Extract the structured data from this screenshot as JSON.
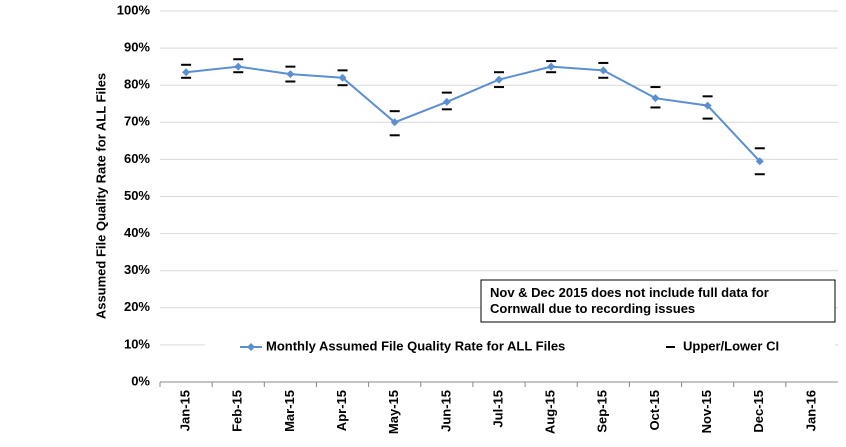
{
  "chart_data": {
    "type": "line",
    "y_label": "Assumed File Quality Rate for ALL Files",
    "annotation": "Nov & Dec 2015 does not include full data for\nCornwall due to recording issues",
    "categories": [
      "Jan-15",
      "Feb-15",
      "Mar-15",
      "Apr-15",
      "May-15",
      "Jun-15",
      "Jul-15",
      "Aug-15",
      "Sep-15",
      "Oct-15",
      "Nov-15",
      "Dec-15",
      "Jan-16"
    ],
    "series": [
      {
        "name": "Monthly Assumed File Quality Rate for ALL Files",
        "color": "#5b8fd1",
        "values": [
          83.5,
          85,
          83,
          82,
          70,
          75.5,
          81.5,
          85,
          84,
          76.5,
          74.5,
          59.5,
          null
        ]
      },
      {
        "name": "Upper/Lower CI",
        "color": "#000000",
        "upper": [
          85.5,
          87,
          85,
          84,
          73,
          78,
          83.5,
          86.5,
          86,
          79.5,
          77,
          63,
          null
        ],
        "lower": [
          82,
          83.5,
          81,
          80,
          66.5,
          73.5,
          79.5,
          83.5,
          82,
          74,
          71,
          56,
          null
        ]
      }
    ],
    "ylim": [
      0,
      100
    ],
    "yticks": [
      {
        "value": 0,
        "label": "0%"
      },
      {
        "value": 10,
        "label": "10%"
      },
      {
        "value": 20,
        "label": "20%"
      },
      {
        "value": 30,
        "label": "30%"
      },
      {
        "value": 40,
        "label": "40%"
      },
      {
        "value": 50,
        "label": "50%"
      },
      {
        "value": 60,
        "label": "60%"
      },
      {
        "value": 70,
        "label": "70%"
      },
      {
        "value": 80,
        "label": "80%"
      },
      {
        "value": 90,
        "label": "90%"
      },
      {
        "value": 100,
        "label": "100%"
      }
    ],
    "grid": true
  }
}
